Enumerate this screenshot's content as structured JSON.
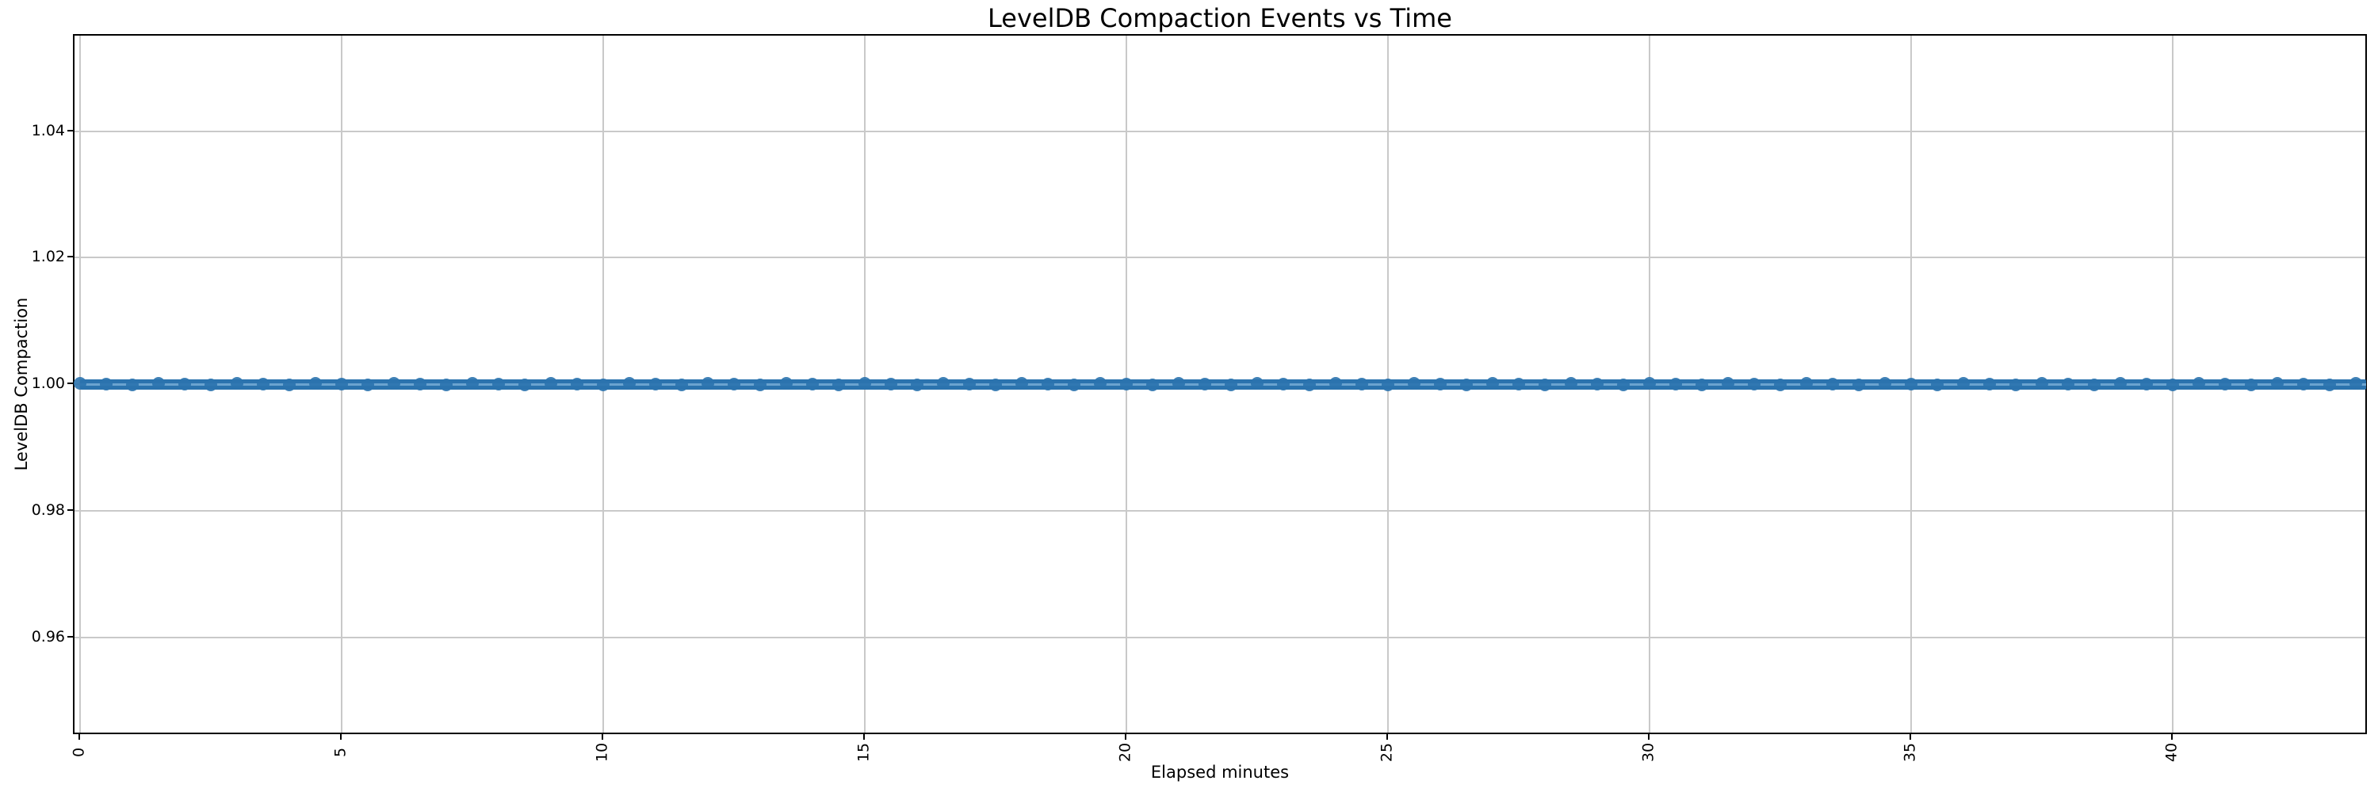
{
  "figure": {
    "title": "LevelDB Compaction Events vs Time",
    "x_label": "Elapsed minutes",
    "y_label": "LevelDB Compaction"
  },
  "chart_data": {
    "type": "line",
    "title": "LevelDB Compaction Events vs Time",
    "xlabel": "Elapsed minutes",
    "ylabel": "LevelDB Compaction",
    "series": [
      {
        "name": "LevelDB Compaction",
        "y_constant": 1.0,
        "x_start": 0,
        "x_end": 43.7,
        "marker": "o",
        "marker_interval_minutes": 0.5,
        "color": "#1f77b4",
        "note": "constant value 1.00 for the entire duration"
      }
    ],
    "x_ticks": [
      0,
      5,
      10,
      15,
      20,
      25,
      30,
      35,
      40
    ],
    "x_tick_labels": [
      "0",
      "5",
      "10",
      "15",
      "20",
      "25",
      "30",
      "35",
      "40"
    ],
    "y_ticks": [
      1.04,
      1.02,
      1.0,
      0.98,
      0.96
    ],
    "y_tick_labels": [
      "1.04",
      "1.02",
      "1.00",
      "0.98",
      "0.96"
    ],
    "xlim": [
      -0.11,
      43.71
    ],
    "ylim": [
      0.9447,
      1.0551
    ],
    "x_tick_rotation_deg": 90,
    "grid": true,
    "legend": false,
    "colors": {
      "line": "#1f77b4",
      "line_core": "#6ba3cf",
      "grid": "#c9c9c9",
      "spine": "#000000",
      "background": "#ffffff",
      "text": "#000000"
    }
  }
}
